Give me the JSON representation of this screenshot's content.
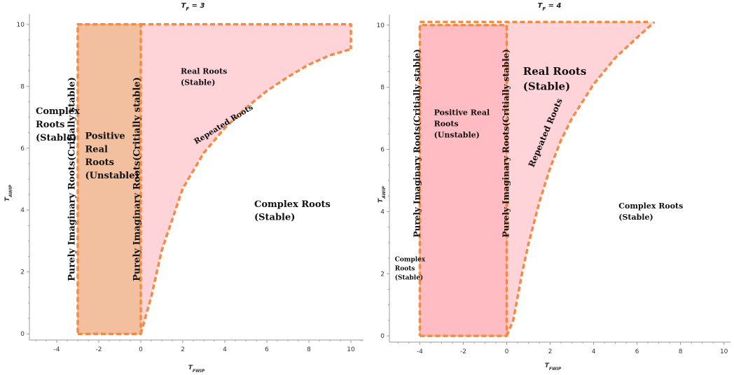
{
  "chart_data": [
    {
      "type": "area",
      "title": "T_F = 3",
      "xlabel": "T_FWIP",
      "ylabel": "T_AWIP",
      "xlim": [
        -5.3,
        10.6
      ],
      "ylim": [
        -0.2,
        10.2
      ],
      "xticks": [
        -4,
        -2,
        0,
        2,
        4,
        6,
        8,
        10
      ],
      "yticks": [
        0,
        2,
        4,
        6,
        8,
        10
      ],
      "regions": [
        {
          "name": "unstable",
          "x": [
            -3,
            0,
            0,
            -3
          ],
          "y": [
            0,
            0,
            10,
            10
          ],
          "color": "#f2c09e"
        },
        {
          "name": "stable-real",
          "x": [
            0,
            0.5,
            1,
            2,
            3,
            4,
            5,
            6,
            7,
            8,
            9,
            10,
            10,
            0
          ],
          "y": [
            0,
            1.2,
            2.7,
            4.7,
            5.85,
            6.65,
            7.3,
            7.85,
            8.3,
            8.7,
            9.0,
            9.2,
            10,
            10
          ],
          "color": "#ffd4d9"
        }
      ],
      "boundaries": [
        {
          "name": "rectangle",
          "x": [
            -3,
            0,
            0,
            -3,
            -3
          ],
          "y": [
            0,
            0,
            10,
            10,
            0
          ]
        },
        {
          "name": "repeated-roots-curve",
          "x": [
            0,
            0.5,
            1,
            2,
            3,
            4,
            5,
            6,
            7,
            8,
            9,
            10
          ],
          "y": [
            0,
            1.2,
            2.7,
            4.7,
            5.85,
            6.65,
            7.3,
            7.85,
            8.3,
            8.7,
            9.0,
            9.2
          ]
        },
        {
          "name": "top-edge",
          "x": [
            0,
            10,
            10
          ],
          "y": [
            10,
            10,
            9.2
          ]
        }
      ],
      "annotations": [
        {
          "lines": [
            "Complex",
            "Roots",
            "(Stable)"
          ],
          "x": -5.0,
          "y": 7.1,
          "size": 13
        },
        {
          "lines": [
            "Positive",
            "Real",
            "Roots",
            "(Unstable)"
          ],
          "x": -2.65,
          "y": 6.3,
          "size": 13
        },
        {
          "lines": [
            "Real Roots",
            "(Stable)"
          ],
          "x": 1.9,
          "y": 8.4,
          "size": 11
        },
        {
          "lines": [
            "Complex Roots",
            "(Stable)"
          ],
          "x": 5.4,
          "y": 4.1,
          "size": 13
        },
        {
          "lines": [
            "Purely Imaginary Roots(Critially stable)"
          ],
          "x": -3.15,
          "y": 5.0,
          "size": 13,
          "rotate": -90
        },
        {
          "lines": [
            "Purely Imaginary Roots(Critially stable)"
          ],
          "x": -0.05,
          "y": 5.0,
          "size": 13,
          "rotate": -90
        },
        {
          "lines": [
            "Repeated Roots"
          ],
          "x": 4.0,
          "y": 6.7,
          "size": 11,
          "rotate": -32
        }
      ]
    },
    {
      "type": "area",
      "title": "T_F = 4",
      "xlabel": "T_FWIP",
      "ylabel": "T_AWIP",
      "xlim": [
        -5.4,
        10.3
      ],
      "ylim": [
        -0.2,
        10.2
      ],
      "xticks": [
        -4,
        -2,
        0,
        2,
        4,
        6,
        8,
        10
      ],
      "yticks": [
        0,
        2,
        4,
        6,
        8,
        10
      ],
      "regions": [
        {
          "name": "unstable",
          "x": [
            -4,
            0,
            0,
            -4
          ],
          "y": [
            0,
            0,
            10,
            10
          ],
          "color": "#ffbcc3"
        },
        {
          "name": "stable-real",
          "x": [
            0,
            0.3,
            0.7,
            1,
            1.5,
            2,
            2.5,
            3,
            4,
            5,
            6,
            6.8,
            0
          ],
          "y": [
            0,
            0.5,
            2.0,
            2.95,
            4.3,
            5.4,
            6.3,
            7.0,
            8.1,
            8.95,
            9.6,
            10.1,
            10.1
          ],
          "color": "#ffd4d9"
        }
      ],
      "boundaries": [
        {
          "name": "rectangle",
          "x": [
            -4,
            0,
            0,
            -4,
            -4
          ],
          "y": [
            0,
            0,
            10,
            10,
            0
          ]
        },
        {
          "name": "repeated-roots-curve",
          "x": [
            0,
            0.3,
            0.7,
            1,
            1.5,
            2,
            2.5,
            3,
            4,
            5,
            6,
            6.8
          ],
          "y": [
            0,
            0.5,
            2.0,
            2.95,
            4.3,
            5.4,
            6.3,
            7.0,
            8.1,
            8.95,
            9.6,
            10.1
          ]
        },
        {
          "name": "top-edge",
          "x": [
            -4,
            6.5
          ],
          "y": [
            10.1,
            10.1
          ]
        }
      ],
      "annotations": [
        {
          "lines": [
            "Complex",
            "Roots",
            "(Stable)"
          ],
          "x": -5.15,
          "y": 2.4,
          "size": 9
        },
        {
          "lines": [
            "Positive Real",
            "Roots",
            "(Unstable)"
          ],
          "x": -3.35,
          "y": 7.1,
          "size": 11
        },
        {
          "lines": [
            "Real Roots",
            "(Stable)"
          ],
          "x": 0.75,
          "y": 8.4,
          "size": 15
        },
        {
          "lines": [
            "Complex Roots",
            "(Stable)"
          ],
          "x": 5.15,
          "y": 4.1,
          "size": 11
        },
        {
          "lines": [
            "Purely Imaginary Roots(Critially stable)"
          ],
          "x": -4.0,
          "y": 6.2,
          "size": 12,
          "rotate": -90
        },
        {
          "lines": [
            "Purely Imaginary Roots(Critially stable)"
          ],
          "x": 0.1,
          "y": 6.2,
          "size": 12,
          "rotate": -90
        },
        {
          "lines": [
            "Repeated Roots"
          ],
          "x": 1.9,
          "y": 6.5,
          "size": 12,
          "rotate": -67
        }
      ]
    }
  ]
}
